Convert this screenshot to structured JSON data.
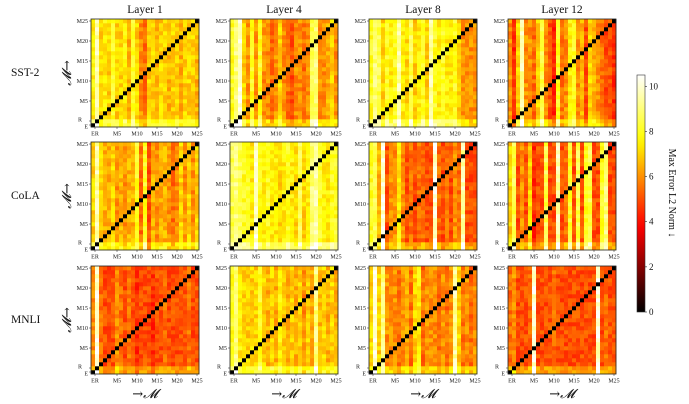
{
  "chart_data": {
    "type": "heatmap",
    "column_titles": [
      "Layer 1",
      "Layer 4",
      "Layer 8",
      "Layer 12"
    ],
    "row_titles": [
      "SST-2",
      "CoLA",
      "MNLI"
    ],
    "categories": [
      "E",
      "R",
      "M1",
      "M2",
      "M3",
      "M4",
      "M5",
      "M6",
      "M7",
      "M8",
      "M9",
      "M10",
      "M11",
      "M12",
      "M13",
      "M14",
      "M15",
      "M16",
      "M17",
      "M18",
      "M19",
      "M20",
      "M21",
      "M22",
      "M23",
      "M24",
      "M25"
    ],
    "x_tick_labels": [
      "ER",
      "M5",
      "M10",
      "M15",
      "M20",
      "M25"
    ],
    "y_tick_labels": [
      "E",
      "R",
      "M5",
      "M10",
      "M15",
      "M20",
      "M25"
    ],
    "xlabel": "→𝓜",
    "ylabel": "𝓜→",
    "diagonal_value": 0,
    "colorbar": {
      "label": "Max Error L2 Norm ↓",
      "range": [
        0,
        10.5
      ],
      "ticks": [
        0,
        2,
        4,
        6,
        8,
        10
      ],
      "colormap": "hot"
    },
    "panels": [
      {
        "dataset": "SST-2",
        "layer": "Layer 1",
        "column_means": [
          7.5,
          9.5,
          7,
          7.5,
          7,
          8,
          7,
          7,
          7.5,
          6.5,
          8,
          7,
          6,
          5.5,
          7,
          7,
          6.5,
          7,
          7,
          6.5,
          7,
          7,
          6.5,
          7,
          7,
          7,
          6.5
        ]
      },
      {
        "dataset": "SST-2",
        "layer": "Layer 4",
        "column_means": [
          8,
          9,
          10,
          7,
          6,
          8,
          6,
          8,
          6,
          6,
          5.5,
          6,
          7,
          6,
          5.5,
          5,
          6,
          6,
          5.5,
          6,
          8.5,
          9,
          6,
          6,
          6.5,
          7,
          6
        ]
      },
      {
        "dataset": "SST-2",
        "layer": "Layer 8",
        "column_means": [
          8,
          9,
          8.5,
          7,
          8,
          7.5,
          8,
          9.5,
          7.5,
          7,
          8.5,
          7,
          7.5,
          8,
          7,
          9.5,
          8,
          7.5,
          8,
          7.5,
          7.5,
          8,
          7,
          6,
          6,
          6,
          6
        ]
      },
      {
        "dataset": "SST-2",
        "layer": "Layer 12",
        "column_means": [
          6,
          4.5,
          7,
          9.5,
          6,
          6,
          5.5,
          7,
          8.5,
          6,
          5,
          4.5,
          8,
          5.5,
          6,
          7.5,
          8,
          6,
          6.5,
          5,
          7,
          6.5,
          6,
          5.5,
          5,
          5,
          4.5
        ]
      },
      {
        "dataset": "CoLA",
        "layer": "Layer 1",
        "column_means": [
          7,
          9.5,
          7,
          6.5,
          6.5,
          7,
          6,
          6.5,
          6,
          6.5,
          6.5,
          8,
          5.5,
          8,
          5,
          6.5,
          6,
          6.5,
          6.5,
          6,
          5.5,
          6,
          7,
          6,
          7,
          6,
          7
        ]
      },
      {
        "dataset": "CoLA",
        "layer": "Layer 4",
        "column_means": [
          8.5,
          9,
          8.5,
          8,
          8,
          7.5,
          10,
          8,
          7.5,
          8,
          7.5,
          7.5,
          7,
          7.5,
          8,
          7.5,
          7,
          8.5,
          7,
          7.5,
          9,
          9.5,
          8,
          7.5,
          7.5,
          8,
          8
        ]
      },
      {
        "dataset": "CoLA",
        "layer": "Layer 8",
        "column_means": [
          8,
          8.5,
          6.5,
          10,
          5,
          6,
          6,
          7.5,
          6,
          5,
          5.5,
          5,
          5.5,
          5.5,
          5,
          5,
          10,
          5.5,
          5,
          5.5,
          5,
          6,
          5.5,
          9.5,
          5,
          5,
          5
        ]
      },
      {
        "dataset": "CoLA",
        "layer": "Layer 12",
        "column_means": [
          7,
          8.5,
          5,
          6,
          5,
          7,
          4.5,
          5,
          5,
          8.5,
          5,
          5,
          9.5,
          5,
          5.5,
          8,
          5,
          8.5,
          5,
          8,
          8.5,
          5,
          5,
          8,
          9,
          5,
          5
        ]
      },
      {
        "dataset": "MNLI",
        "layer": "Layer 1",
        "column_means": [
          6,
          10,
          5.5,
          5,
          5,
          5,
          6,
          5.5,
          5,
          5.5,
          5,
          4.5,
          5,
          5,
          5,
          4.5,
          5,
          5,
          5.5,
          5,
          5,
          5,
          5,
          5,
          5.5,
          5,
          5
        ]
      },
      {
        "dataset": "MNLI",
        "layer": "Layer 4",
        "column_means": [
          8,
          9,
          7.5,
          7,
          7,
          7,
          7,
          8,
          7,
          6.5,
          7,
          6.5,
          7.5,
          7,
          6.5,
          7,
          6.5,
          7,
          6,
          7,
          6.5,
          9,
          6.5,
          7,
          6.5,
          7,
          6.5
        ]
      },
      {
        "dataset": "MNLI",
        "layer": "Layer 8",
        "column_means": [
          7,
          10,
          7,
          9,
          6,
          6,
          6,
          5.5,
          6,
          6.5,
          5.5,
          7,
          7.5,
          5.5,
          6,
          6,
          6,
          5.5,
          6,
          5.5,
          6,
          9.5,
          7,
          5.5,
          6,
          5.5,
          6
        ]
      },
      {
        "dataset": "MNLI",
        "layer": "Layer 12",
        "column_means": [
          5.5,
          6,
          5,
          5,
          5,
          5.5,
          10,
          5,
          5,
          5,
          5,
          5.5,
          5,
          5,
          5,
          5,
          5,
          5,
          5,
          5,
          5,
          5,
          10,
          5,
          5.5,
          5,
          5
        ]
      }
    ]
  }
}
